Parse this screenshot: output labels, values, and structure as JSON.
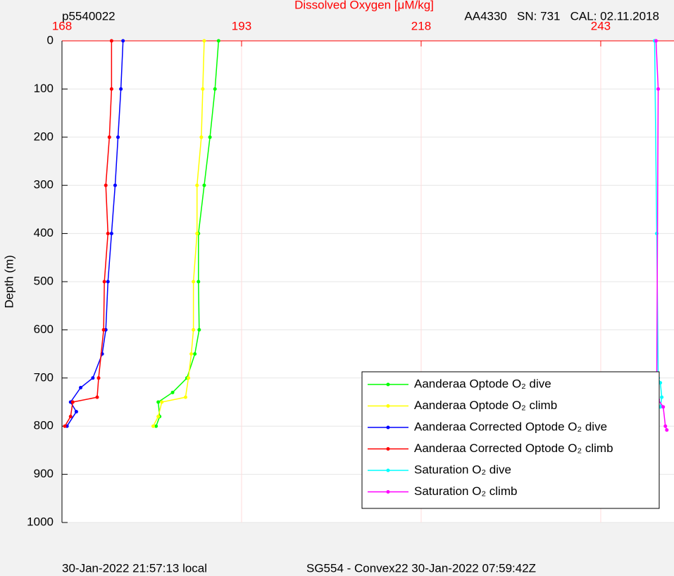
{
  "chart_data": {
    "type": "line",
    "title": "Dissolved Oxygen [μM/kg]",
    "top_left_label": "p5540022",
    "top_right_label": "AA4330   SN: 731   CAL: 02.11.2018",
    "ylabel": "Depth (m)",
    "footer_left": "30-Jan-2022 21:57:13 local",
    "footer_right": "SG554 - Convex22 30-Jan-2022 07:59:42Z",
    "xlim": [
      168,
      253.2
    ],
    "xticks": [
      168,
      193,
      218,
      243
    ],
    "ylim": [
      0,
      1000
    ],
    "yticks": [
      0,
      100,
      200,
      300,
      400,
      500,
      600,
      700,
      800,
      900,
      1000
    ],
    "y_reversed": true,
    "x_axis_position": "top",
    "grid": true,
    "legend_position": "lower right",
    "series": [
      {
        "name": "Aanderaa Optode O₂ dive",
        "color": "#00ff00",
        "x": [
          189.8,
          189.3,
          188.6,
          187.8,
          187.0,
          187.0,
          187.1,
          186.5,
          185.4,
          183.4,
          181.4,
          181.6,
          181.1
        ],
        "values": [
          0,
          100,
          200,
          300,
          400,
          500,
          600,
          650,
          700,
          730,
          750,
          780,
          800
        ]
      },
      {
        "name": "Aanderaa Optode O₂ climb",
        "color": "#ffff00",
        "x": [
          187.8,
          187.6,
          187.4,
          186.8,
          186.8,
          186.3,
          186.3,
          186.0,
          185.6,
          185.2,
          181.9,
          181.4,
          180.7
        ],
        "values": [
          0,
          100,
          200,
          300,
          400,
          500,
          600,
          650,
          700,
          740,
          750,
          780,
          800
        ]
      },
      {
        "name": "Aanderaa Corrected Optode O₂ dive",
        "color": "#0000ff",
        "x": [
          176.5,
          176.2,
          175.8,
          175.4,
          174.9,
          174.4,
          174.1,
          173.6,
          172.3,
          170.6,
          169.2,
          170.0,
          168.7
        ],
        "values": [
          0,
          100,
          200,
          300,
          400,
          500,
          600,
          650,
          700,
          720,
          750,
          770,
          800
        ]
      },
      {
        "name": "Aanderaa Corrected Optode O₂ climb",
        "color": "#ff0000",
        "x": [
          174.9,
          174.9,
          174.6,
          174.1,
          174.4,
          173.9,
          173.8,
          173.1,
          172.9,
          169.5,
          169.2,
          168.4
        ],
        "values": [
          0,
          100,
          200,
          300,
          400,
          500,
          600,
          700,
          740,
          750,
          780,
          800
        ]
      },
      {
        "name": "Saturation O₂ dive",
        "color": "#00ffff",
        "x": [
          250.5,
          250.8,
          251.0,
          251.3,
          251.5,
          251.3
        ],
        "values": [
          0,
          400,
          700,
          710,
          740,
          760
        ]
      },
      {
        "name": "Saturation O₂ climb",
        "color": "#ff00ff",
        "x": [
          250.7,
          251.0,
          250.8,
          251.0,
          251.7,
          252.0,
          252.2
        ],
        "values": [
          0,
          100,
          700,
          745,
          760,
          800,
          808
        ]
      }
    ]
  }
}
